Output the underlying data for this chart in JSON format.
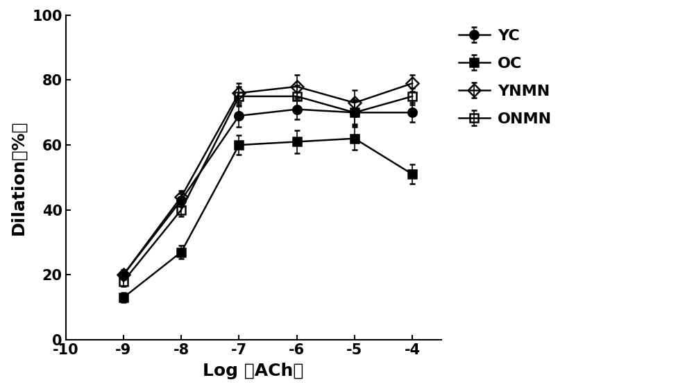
{
  "x": [
    -9,
    -8,
    -7,
    -6,
    -5,
    -4
  ],
  "series": {
    "YC": {
      "y": [
        20,
        43,
        69,
        71,
        70,
        70
      ],
      "yerr": [
        1.5,
        2.0,
        3.5,
        3.0,
        4.0,
        3.0
      ],
      "marker": "o",
      "fillstyle": "full",
      "color": "black",
      "label": "YC"
    },
    "OC": {
      "y": [
        13,
        27,
        60,
        61,
        62,
        51
      ],
      "yerr": [
        1.5,
        2.0,
        3.0,
        3.5,
        3.5,
        3.0
      ],
      "marker": "s",
      "fillstyle": "full",
      "color": "black",
      "label": "OC"
    },
    "YNMN": {
      "y": [
        20,
        44,
        76,
        78,
        73,
        79
      ],
      "yerr": [
        1.5,
        2.0,
        3.0,
        3.5,
        4.0,
        2.5
      ],
      "marker": "D",
      "fillstyle": "none",
      "color": "black",
      "label": "YNMN"
    },
    "ONMN": {
      "y": [
        18,
        40,
        75,
        75,
        70,
        75
      ],
      "yerr": [
        1.5,
        2.0,
        3.0,
        3.5,
        3.5,
        2.5
      ],
      "marker": "s",
      "fillstyle": "none",
      "color": "black",
      "label": "ONMN"
    }
  },
  "xlabel": "Log （ACh）",
  "ylabel": "Dilation（%）",
  "xlim": [
    -10,
    -3.5
  ],
  "ylim": [
    0,
    100
  ],
  "xticks": [
    -10,
    -9,
    -8,
    -7,
    -6,
    -5,
    -4
  ],
  "yticks": [
    0,
    20,
    40,
    60,
    80,
    100
  ],
  "xtick_labels": [
    "-10",
    "-9",
    "-8",
    "-7",
    "-6",
    "-5",
    "-4"
  ],
  "ytick_labels": [
    "0",
    "20",
    "40",
    "60",
    "80",
    "100"
  ],
  "legend_order": [
    "YC",
    "OC",
    "YNMN",
    "ONMN"
  ],
  "background_color": "#ffffff",
  "linewidth": 1.8,
  "markersize": 9,
  "capsize": 3,
  "axis_fontsize": 18,
  "tick_fontsize": 15,
  "legend_fontsize": 16
}
